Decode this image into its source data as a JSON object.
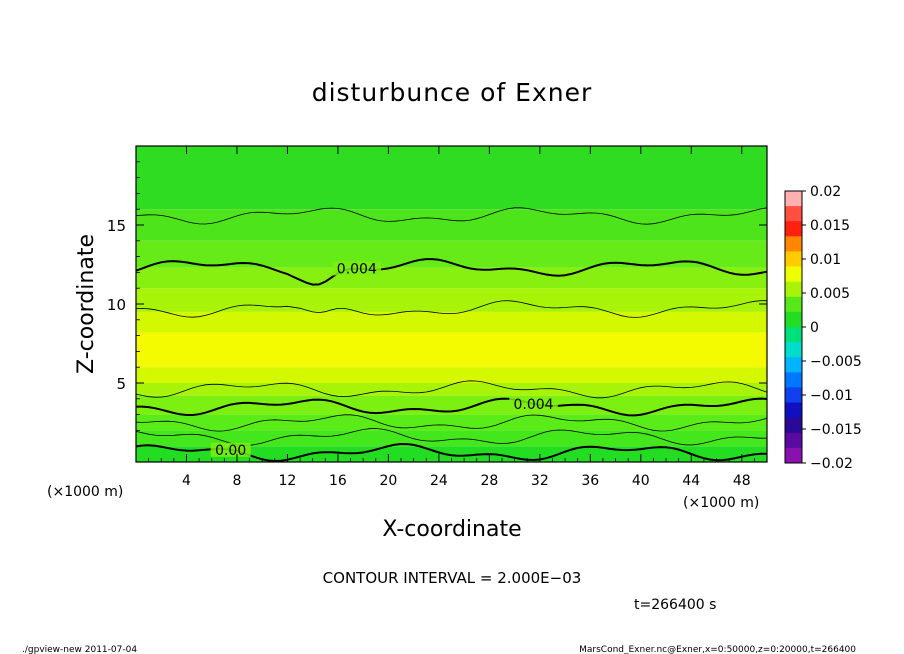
{
  "chart_data": {
    "type": "heatmap",
    "title": "disturbunce of Exner",
    "xlabel": "X-coordinate",
    "ylabel": "Z-coordinate",
    "x_unit_left": "(×1000 m)",
    "x_unit_right": "(×1000 m)",
    "xlim": [
      0,
      50
    ],
    "ylim": [
      0,
      20
    ],
    "x_ticks": [
      4,
      8,
      12,
      16,
      20,
      24,
      28,
      32,
      36,
      40,
      44,
      48
    ],
    "y_ticks": [
      5,
      10,
      15
    ],
    "colorbar_levels": [
      0.02,
      0.015,
      0.01,
      0.005,
      0,
      -0.005,
      -0.01,
      -0.015,
      -0.02
    ],
    "colorbar_labels": [
      "0.02",
      "0.015",
      "0.01",
      "0.005",
      "0",
      "−0.005",
      "−0.01",
      "−0.015",
      "−0.02"
    ],
    "bands": [
      {
        "z0": 0,
        "z1": 1,
        "color": "#22dd22"
      },
      {
        "z0": 1,
        "z1": 2,
        "color": "#44e61c"
      },
      {
        "z0": 2,
        "z1": 3,
        "color": "#5aec18"
      },
      {
        "z0": 3,
        "z1": 4.2,
        "color": "#7cf010"
      },
      {
        "z0": 4.2,
        "z1": 5,
        "color": "#a8f408"
      },
      {
        "z0": 5,
        "z1": 6,
        "color": "#d4f800"
      },
      {
        "z0": 6,
        "z1": 8.2,
        "color": "#f4fb00"
      },
      {
        "z0": 8.2,
        "z1": 9.5,
        "color": "#d4f800"
      },
      {
        "z0": 9.5,
        "z1": 11,
        "color": "#a8f408"
      },
      {
        "z0": 11,
        "z1": 12.3,
        "color": "#88f010"
      },
      {
        "z0": 12.3,
        "z1": 14,
        "color": "#66ea18"
      },
      {
        "z0": 14,
        "z1": 16,
        "color": "#4ee41c"
      },
      {
        "z0": 16,
        "z1": 20,
        "color": "#30dc22"
      }
    ],
    "contours": [
      {
        "z": 0.6,
        "bold": true,
        "label": "0.00",
        "label_x": 7.5
      },
      {
        "z": 1.6,
        "bold": false
      },
      {
        "z": 2.5,
        "bold": false
      },
      {
        "z": 3.5,
        "bold": true,
        "label": "0.004",
        "label_x": 31.5
      },
      {
        "z": 4.6,
        "bold": false
      },
      {
        "z": 9.7,
        "bold": false
      },
      {
        "z": 12.3,
        "bold": true,
        "label": "0.004",
        "label_x": 17.5
      },
      {
        "z": 15.6,
        "bold": false
      }
    ]
  },
  "contour_interval": "CONTOUR INTERVAL = 2.000E−03",
  "time_label": "t=266400 s",
  "footer_left": "./gpview-new   2011-07-04",
  "footer_right": "MarsCond_Exner.nc@Exner,x=0:50000,z=0:20000,t=266400",
  "colors": {
    "colorbar": [
      "#ffb0b0",
      "#ff5040",
      "#ff2010",
      "#ff8800",
      "#ffcc00",
      "#eeff00",
      "#a8f408",
      "#55e81a",
      "#22dd22",
      "#00e07a",
      "#00ddcc",
      "#00b4ff",
      "#0077ff",
      "#1040f0",
      "#1010c0",
      "#2a0898",
      "#5a0aa0",
      "#8a10b0"
    ]
  }
}
